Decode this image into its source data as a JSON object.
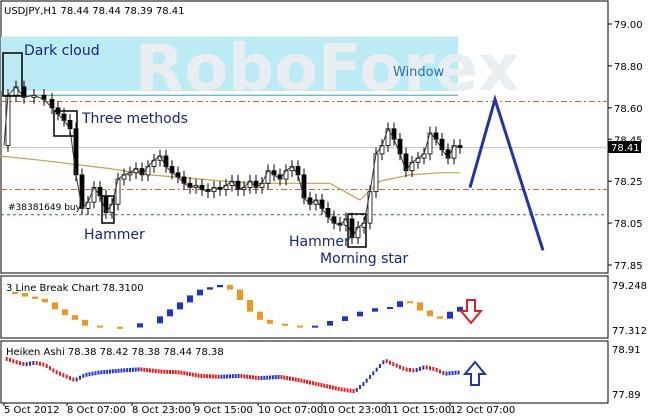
{
  "chart_data": {
    "type": "candlestick",
    "symbol_header": "USDJPY,H1  78.44 78.44 78.39 78.41",
    "current_price": "78.41",
    "watermark": "RoboForex",
    "y_ticks": [
      "79.00",
      "78.80",
      "78.60",
      "78.45",
      "78.25",
      "78.05",
      "77.85"
    ],
    "x_ticks": [
      "5 Oct 2012",
      "8 Oct 07:00",
      "8 Oct 23:00",
      "9 Oct 15:00",
      "10 Oct 07:00",
      "10 Oct 23:00",
      "11 Oct 15:00",
      "12 Oct 07:00"
    ],
    "annotations": {
      "dark_cloud": "Dark cloud",
      "window": "Window",
      "three_methods": "Three methods",
      "hammer_1": "Hammer",
      "hammer_2": "Hammer",
      "morning_star": "Morning star",
      "order": "#38381649 buy"
    },
    "levels": {
      "resistance": 78.63,
      "support": 78.21,
      "buy_order": 78.09,
      "window_top": 78.94,
      "window_bottom": 78.68
    },
    "forecast_path": [
      [
        470,
        78.22
      ],
      [
        495,
        78.64
      ],
      [
        543,
        77.92
      ]
    ],
    "ma_path": [
      [
        0,
        78.37
      ],
      [
        40,
        78.35
      ],
      [
        75,
        78.33
      ],
      [
        110,
        78.31
      ],
      [
        150,
        78.28
      ],
      [
        200,
        78.26
      ],
      [
        250,
        78.24
      ],
      [
        290,
        78.24
      ],
      [
        330,
        78.24
      ],
      [
        360,
        78.16
      ],
      [
        380,
        78.25
      ],
      [
        410,
        78.28
      ],
      [
        440,
        78.29
      ],
      [
        460,
        78.29
      ]
    ],
    "price_path": [
      [
        4,
        78.42
      ],
      [
        8,
        78.66
      ],
      [
        16,
        78.7
      ],
      [
        24,
        78.65
      ],
      [
        34,
        78.66
      ],
      [
        44,
        78.64
      ],
      [
        52,
        78.6
      ],
      [
        58,
        78.57
      ],
      [
        64,
        78.54
      ],
      [
        70,
        78.5
      ],
      [
        76,
        78.28
      ],
      [
        82,
        78.12
      ],
      [
        88,
        78.15
      ],
      [
        94,
        78.22
      ],
      [
        100,
        78.18
      ],
      [
        106,
        78.1
      ],
      [
        112,
        78.14
      ],
      [
        118,
        78.26
      ],
      [
        124,
        78.28
      ],
      [
        130,
        78.29
      ],
      [
        136,
        78.31
      ],
      [
        142,
        78.28
      ],
      [
        148,
        78.32
      ],
      [
        154,
        78.35
      ],
      [
        160,
        78.37
      ],
      [
        166,
        78.32
      ],
      [
        172,
        78.29
      ],
      [
        178,
        78.27
      ],
      [
        184,
        78.24
      ],
      [
        190,
        78.22
      ],
      [
        196,
        78.23
      ],
      [
        202,
        78.21
      ],
      [
        208,
        78.2
      ],
      [
        214,
        78.22
      ],
      [
        220,
        78.21
      ],
      [
        226,
        78.23
      ],
      [
        232,
        78.25
      ],
      [
        238,
        78.21
      ],
      [
        244,
        78.22
      ],
      [
        250,
        78.25
      ],
      [
        256,
        78.22
      ],
      [
        262,
        78.24
      ],
      [
        268,
        78.3
      ],
      [
        274,
        78.28
      ],
      [
        280,
        78.26
      ],
      [
        286,
        78.3
      ],
      [
        292,
        78.32
      ],
      [
        298,
        78.28
      ],
      [
        304,
        78.17
      ],
      [
        310,
        78.14
      ],
      [
        316,
        78.16
      ],
      [
        322,
        78.12
      ],
      [
        328,
        78.08
      ],
      [
        334,
        78.05
      ],
      [
        340,
        78.04
      ],
      [
        346,
        78.07
      ],
      [
        352,
        77.98
      ],
      [
        358,
        78.03
      ],
      [
        364,
        78.05
      ],
      [
        370,
        78.2
      ],
      [
        376,
        78.38
      ],
      [
        382,
        78.42
      ],
      [
        388,
        78.5
      ],
      [
        394,
        78.45
      ],
      [
        400,
        78.38
      ],
      [
        406,
        78.3
      ],
      [
        412,
        78.34
      ],
      [
        418,
        78.36
      ],
      [
        424,
        78.38
      ],
      [
        430,
        78.48
      ],
      [
        436,
        78.45
      ],
      [
        442,
        78.4
      ],
      [
        448,
        78.36
      ],
      [
        454,
        78.42
      ],
      [
        460,
        78.41
      ]
    ],
    "line_break_label": "3 Line Break Chart 78.3100",
    "line_break_ticks": [
      "79.248",
      "77.312"
    ],
    "heiken_ashi_label": "Heiken Ashi 78.38 78.42 78.38 78.44 78.38",
    "heiken_ashi_ticks": [
      "78.91",
      "77.89"
    ],
    "lb_path": [
      [
        5,
        78.95
      ],
      [
        15,
        78.9
      ],
      [
        25,
        78.75
      ],
      [
        35,
        78.65
      ],
      [
        45,
        78.5
      ],
      [
        55,
        78.2
      ],
      [
        65,
        77.95
      ],
      [
        75,
        77.75
      ],
      [
        85,
        77.5
      ],
      [
        100,
        77.45
      ],
      [
        120,
        77.42
      ],
      [
        140,
        77.6
      ],
      [
        160,
        77.9
      ],
      [
        170,
        78.2
      ],
      [
        180,
        78.5
      ],
      [
        190,
        78.8
      ],
      [
        200,
        79.05
      ],
      [
        210,
        79.15
      ],
      [
        220,
        79.25
      ],
      [
        230,
        79.05
      ],
      [
        240,
        78.6
      ],
      [
        250,
        78.1
      ],
      [
        260,
        77.75
      ],
      [
        270,
        77.58
      ],
      [
        285,
        77.5
      ],
      [
        300,
        77.42
      ],
      [
        315,
        77.5
      ],
      [
        330,
        77.7
      ],
      [
        345,
        77.9
      ],
      [
        360,
        78.1
      ],
      [
        375,
        78.25
      ],
      [
        390,
        78.3
      ],
      [
        400,
        78.55
      ],
      [
        410,
        78.5
      ],
      [
        420,
        78.15
      ],
      [
        430,
        77.9
      ],
      [
        440,
        77.8
      ],
      [
        450,
        78.1
      ],
      [
        460,
        78.31
      ]
    ],
    "ha_path": [
      [
        5,
        78.7
      ],
      [
        15,
        78.62
      ],
      [
        25,
        78.56
      ],
      [
        35,
        78.6
      ],
      [
        45,
        78.55
      ],
      [
        55,
        78.4
      ],
      [
        65,
        78.3
      ],
      [
        75,
        78.2
      ],
      [
        85,
        78.32
      ],
      [
        100,
        78.38
      ],
      [
        120,
        78.42
      ],
      [
        140,
        78.45
      ],
      [
        160,
        78.4
      ],
      [
        180,
        78.38
      ],
      [
        200,
        78.3
      ],
      [
        220,
        78.28
      ],
      [
        240,
        78.3
      ],
      [
        260,
        78.25
      ],
      [
        280,
        78.28
      ],
      [
        300,
        78.2
      ],
      [
        320,
        78.1
      ],
      [
        340,
        78.0
      ],
      [
        355,
        77.95
      ],
      [
        365,
        78.15
      ],
      [
        375,
        78.4
      ],
      [
        385,
        78.65
      ],
      [
        395,
        78.55
      ],
      [
        405,
        78.45
      ],
      [
        415,
        78.42
      ],
      [
        425,
        78.5
      ],
      [
        435,
        78.45
      ],
      [
        445,
        78.35
      ],
      [
        460,
        78.38
      ]
    ]
  }
}
